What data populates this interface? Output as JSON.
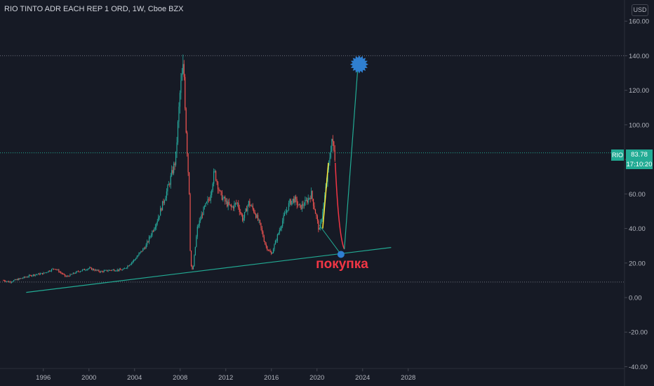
{
  "header": {
    "title": "RIO TINTO ADR EACH REP 1 ORD, 1W, Cboe BZX",
    "currency": "USD"
  },
  "price_label": {
    "symbol": "RIO",
    "price": "83.78",
    "countdown": "17:10:20"
  },
  "annotation": {
    "text": "покупка"
  },
  "colors": {
    "background": "#161a25",
    "up": "#26a69a",
    "down": "#ef5350",
    "trendline": "#22ab94",
    "forecast_down": "#f23645",
    "forecast_up": "#ffeb3b",
    "marker": "#2f7fd1"
  },
  "chart_data": {
    "type": "candlestick",
    "title": "RIO TINTO ADR EACH REP 1 ORD, 1W, Cboe BZX",
    "xlabel": "",
    "ylabel": "",
    "x_ticks": [
      "1996",
      "2000",
      "2004",
      "2008",
      "2012",
      "2016",
      "2020",
      "2024",
      "2028"
    ],
    "y_ticks": [
      "160.00",
      "140.00",
      "120.00",
      "100.00",
      "80.00",
      "60.00",
      "40.00",
      "20.00",
      "0.00",
      "-20.00",
      "-40.00"
    ],
    "ylim": [
      -40,
      160
    ],
    "xlim": [
      1992.5,
      2032.0
    ],
    "horizontal_lines": [
      140,
      83.78,
      9
    ],
    "series": [
      {
        "kind": "price",
        "points": [
          [
            1992.5,
            10
          ],
          [
            1993,
            9
          ],
          [
            1994,
            11
          ],
          [
            1995,
            13
          ],
          [
            1996,
            14
          ],
          [
            1997,
            17
          ],
          [
            1998,
            12
          ],
          [
            1999,
            15
          ],
          [
            2000,
            17
          ],
          [
            2001,
            15
          ],
          [
            2002,
            16
          ],
          [
            2003,
            16
          ],
          [
            2004,
            22
          ],
          [
            2005,
            30
          ],
          [
            2006,
            45
          ],
          [
            2007,
            65
          ],
          [
            2007.6,
            80
          ],
          [
            2008.0,
            120
          ],
          [
            2008.3,
            135
          ],
          [
            2008.5,
            100
          ],
          [
            2008.8,
            60
          ],
          [
            2008.9,
            20
          ],
          [
            2009.1,
            15
          ],
          [
            2009.5,
            40
          ],
          [
            2010,
            50
          ],
          [
            2010.6,
            58
          ],
          [
            2011.0,
            73
          ],
          [
            2011.5,
            60
          ],
          [
            2012,
            55
          ],
          [
            2012.5,
            52
          ],
          [
            2013,
            55
          ],
          [
            2013.5,
            45
          ],
          [
            2014,
            55
          ],
          [
            2014.5,
            50
          ],
          [
            2015,
            42
          ],
          [
            2015.5,
            30
          ],
          [
            2016.0,
            25
          ],
          [
            2016.5,
            35
          ],
          [
            2017,
            45
          ],
          [
            2017.6,
            55
          ],
          [
            2018,
            57
          ],
          [
            2018.5,
            52
          ],
          [
            2019,
            55
          ],
          [
            2019.5,
            60
          ],
          [
            2020.0,
            45
          ],
          [
            2020.2,
            38
          ],
          [
            2020.6,
            55
          ],
          [
            2021.0,
            75
          ],
          [
            2021.3,
            92
          ],
          [
            2021.6,
            80
          ]
        ]
      },
      {
        "kind": "forecast",
        "name": "",
        "points": [
          [
            2021.6,
            78
          ],
          [
            2022.4,
            28
          ],
          [
            2023.6,
            135
          ]
        ]
      }
    ],
    "trendline": [
      [
        1994.5,
        3
      ],
      [
        2026.5,
        29
      ]
    ],
    "markers": [
      {
        "shape": "circle",
        "x": 2022.1,
        "y": 25
      },
      {
        "shape": "star",
        "x": 2023.7,
        "y": 135
      }
    ],
    "annotations": [
      {
        "text": "покупка",
        "x": 2022.2,
        "y": 17
      }
    ],
    "last_price": 83.78,
    "grid": false,
    "legend": "none"
  }
}
